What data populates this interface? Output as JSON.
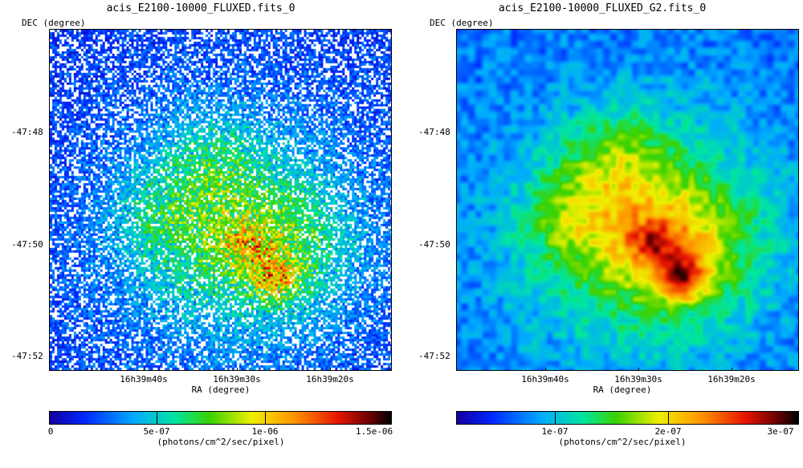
{
  "left": {
    "title": "acis_E2100-10000_FLUXED.fits_0",
    "y_axis_label": "DEC (degree)",
    "y_ticks": [
      "-47:48",
      "-47:50",
      "-47:52"
    ],
    "x_ticks": [
      "16h39m40s",
      "16h39m30s",
      "16h39m20s"
    ],
    "x_axis_label": "RA (degree)",
    "colorbar_ticks": [
      "0",
      "5e-07",
      "1e-06",
      "1.5e-06"
    ],
    "colorbar_units": "(photons/cm^2/sec/pixel)"
  },
  "right": {
    "title": "acis_E2100-10000_FLUXED_G2.fits_0",
    "y_axis_label": "DEC (degree)",
    "y_ticks": [
      "-47:48",
      "-47:50",
      "-47:52"
    ],
    "x_ticks": [
      "16h39m40s",
      "16h39m30s",
      "16h39m20s"
    ],
    "x_axis_label": "RA (degree)",
    "colorbar_ticks": [
      "1e-07",
      "2e-07",
      "3e-07"
    ],
    "colorbar_units": "(photons/cm^2/sec/pixel)"
  }
}
